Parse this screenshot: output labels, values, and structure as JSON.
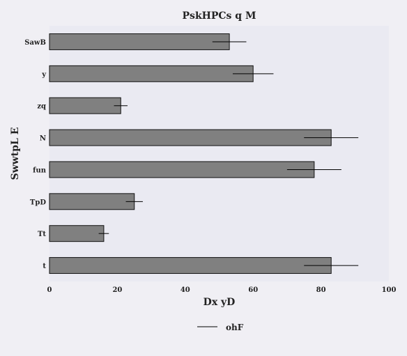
{
  "chart_data": {
    "type": "bar",
    "orientation": "horizontal",
    "title": "PskHPCs q M",
    "xlabel": "Dx  yD",
    "ylabel": "SwwtpL E",
    "xlim": [
      0,
      100
    ],
    "xticks": [
      "0",
      "20",
      "40",
      "60",
      "80",
      "100"
    ],
    "categories": [
      "SawB",
      "y",
      "zq",
      "N",
      "fun",
      "TpD",
      "Tt",
      "t"
    ],
    "series": [
      {
        "name": "ohF",
        "values": [
          53,
          60,
          21,
          83,
          78,
          25,
          16,
          83
        ],
        "errors": [
          5,
          6,
          2,
          8,
          8,
          2.5,
          1.5,
          8
        ]
      }
    ],
    "grid": false,
    "legend_position": "bottom-center",
    "colors": {
      "plot_bg": "#eaeaf2",
      "bar_fill": "#808080",
      "bar_edge": "#111111",
      "error": "#000000"
    }
  }
}
